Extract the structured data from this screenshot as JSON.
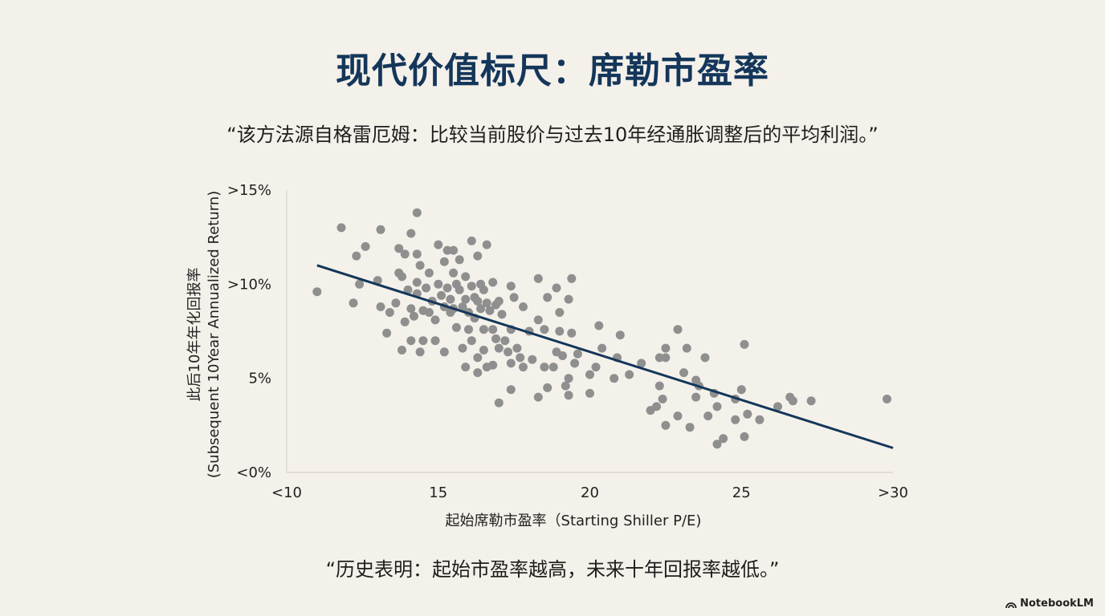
{
  "title": "现代价值标尺：席勒市盈率",
  "subtitle": "“该方法源自格雷厄姆：比较当前股价与过去10年经通胀调整后的平均利润。”",
  "conclusion": "“历史表明：起始市盈率越高，未来十年回报率越低。”",
  "brand": "NotebookLM",
  "colors": {
    "title": "#14365a",
    "points": "#8f8f8f",
    "trendline": "#14365a",
    "background": "#f4f1ea"
  },
  "chart_data": {
    "type": "scatter",
    "xlabel": "起始席勒市盈率（Starting Shiller P/E)",
    "ylabel_line1": "此后10年年化回报率",
    "ylabel_line2": "(Subsequent 10Year Annualized Return)",
    "xlim": [
      10,
      30
    ],
    "ylim": [
      0,
      15
    ],
    "x_ticks": [
      {
        "value": 10,
        "label": "<10"
      },
      {
        "value": 15,
        "label": "15"
      },
      {
        "value": 20,
        "label": "20"
      },
      {
        "value": 25,
        "label": "25"
      },
      {
        "value": 30,
        "label": ">30"
      }
    ],
    "y_ticks": [
      {
        "value": 0,
        "label": "<0%"
      },
      {
        "value": 5,
        "label": "5%"
      },
      {
        "value": 10,
        "label": ">10%"
      },
      {
        "value": 15,
        "label": ">15%"
      }
    ],
    "trendline": {
      "x": [
        11,
        30
      ],
      "y": [
        11.0,
        1.3
      ]
    },
    "points": [
      [
        11.0,
        9.6
      ],
      [
        11.8,
        13.0
      ],
      [
        12.2,
        9.0
      ],
      [
        12.3,
        11.5
      ],
      [
        12.4,
        10.0
      ],
      [
        12.6,
        12.0
      ],
      [
        13.0,
        10.2
      ],
      [
        13.1,
        12.9
      ],
      [
        13.1,
        8.8
      ],
      [
        13.3,
        7.4
      ],
      [
        13.4,
        8.5
      ],
      [
        13.6,
        9.0
      ],
      [
        13.7,
        11.9
      ],
      [
        13.7,
        10.6
      ],
      [
        13.8,
        10.4
      ],
      [
        13.8,
        6.5
      ],
      [
        13.9,
        8.0
      ],
      [
        13.9,
        11.6
      ],
      [
        14.0,
        9.7
      ],
      [
        14.1,
        8.7
      ],
      [
        14.1,
        7.0
      ],
      [
        14.1,
        12.7
      ],
      [
        14.2,
        8.3
      ],
      [
        14.3,
        13.8
      ],
      [
        14.3,
        11.6
      ],
      [
        14.3,
        10.1
      ],
      [
        14.3,
        9.5
      ],
      [
        14.4,
        11.0
      ],
      [
        14.4,
        6.4
      ],
      [
        14.5,
        8.6
      ],
      [
        14.5,
        7.0
      ],
      [
        14.6,
        9.8
      ],
      [
        14.7,
        10.6
      ],
      [
        14.7,
        8.5
      ],
      [
        14.8,
        9.1
      ],
      [
        14.9,
        8.1
      ],
      [
        14.9,
        7.0
      ],
      [
        15.0,
        12.1
      ],
      [
        15.0,
        10.0
      ],
      [
        15.1,
        9.4
      ],
      [
        15.2,
        11.2
      ],
      [
        15.2,
        8.8
      ],
      [
        15.2,
        6.4
      ],
      [
        15.3,
        11.8
      ],
      [
        15.3,
        9.8
      ],
      [
        15.4,
        9.2
      ],
      [
        15.4,
        8.5
      ],
      [
        15.5,
        11.8
      ],
      [
        15.5,
        10.6
      ],
      [
        15.5,
        8.7
      ],
      [
        15.6,
        10.0
      ],
      [
        15.6,
        7.7
      ],
      [
        15.7,
        11.3
      ],
      [
        15.7,
        9.7
      ],
      [
        15.8,
        8.8
      ],
      [
        15.8,
        6.6
      ],
      [
        15.9,
        10.4
      ],
      [
        15.9,
        9.2
      ],
      [
        15.9,
        5.6
      ],
      [
        16.0,
        8.5
      ],
      [
        16.0,
        7.6
      ],
      [
        16.1,
        12.3
      ],
      [
        16.1,
        9.9
      ],
      [
        16.1,
        7.0
      ],
      [
        16.2,
        9.3
      ],
      [
        16.2,
        8.2
      ],
      [
        16.3,
        11.5
      ],
      [
        16.3,
        9.1
      ],
      [
        16.3,
        6.1
      ],
      [
        16.3,
        5.3
      ],
      [
        16.4,
        10.0
      ],
      [
        16.4,
        8.7
      ],
      [
        16.5,
        9.7
      ],
      [
        16.5,
        7.6
      ],
      [
        16.5,
        6.5
      ],
      [
        16.6,
        12.1
      ],
      [
        16.6,
        9.0
      ],
      [
        16.6,
        5.6
      ],
      [
        16.7,
        8.6
      ],
      [
        16.8,
        10.1
      ],
      [
        16.8,
        7.6
      ],
      [
        16.8,
        5.7
      ],
      [
        16.9,
        8.9
      ],
      [
        16.9,
        7.1
      ],
      [
        17.0,
        9.1
      ],
      [
        17.0,
        6.6
      ],
      [
        17.0,
        3.7
      ],
      [
        17.1,
        8.4
      ],
      [
        17.2,
        7.0
      ],
      [
        17.3,
        6.4
      ],
      [
        17.4,
        9.9
      ],
      [
        17.4,
        7.6
      ],
      [
        17.4,
        5.8
      ],
      [
        17.4,
        4.4
      ],
      [
        17.5,
        9.3
      ],
      [
        17.6,
        6.6
      ],
      [
        17.7,
        6.1
      ],
      [
        17.8,
        8.8
      ],
      [
        17.8,
        5.6
      ],
      [
        18.0,
        7.5
      ],
      [
        18.1,
        6.0
      ],
      [
        18.3,
        10.3
      ],
      [
        18.3,
        8.1
      ],
      [
        18.3,
        4.0
      ],
      [
        18.5,
        7.6
      ],
      [
        18.5,
        5.6
      ],
      [
        18.6,
        9.3
      ],
      [
        18.6,
        4.5
      ],
      [
        18.8,
        5.6
      ],
      [
        18.9,
        9.8
      ],
      [
        18.9,
        6.4
      ],
      [
        19.0,
        8.5
      ],
      [
        19.0,
        7.5
      ],
      [
        19.1,
        6.2
      ],
      [
        19.2,
        4.6
      ],
      [
        19.3,
        9.2
      ],
      [
        19.3,
        5.0
      ],
      [
        19.3,
        4.1
      ],
      [
        19.4,
        10.3
      ],
      [
        19.4,
        7.4
      ],
      [
        19.5,
        5.8
      ],
      [
        19.6,
        6.3
      ],
      [
        20.0,
        5.2
      ],
      [
        20.0,
        4.2
      ],
      [
        20.2,
        5.6
      ],
      [
        20.3,
        7.8
      ],
      [
        20.4,
        6.6
      ],
      [
        20.8,
        5.0
      ],
      [
        20.9,
        6.1
      ],
      [
        21.0,
        7.3
      ],
      [
        21.3,
        5.2
      ],
      [
        21.7,
        5.8
      ],
      [
        22.0,
        3.3
      ],
      [
        22.2,
        3.5
      ],
      [
        22.3,
        6.1
      ],
      [
        22.3,
        4.6
      ],
      [
        22.4,
        3.9
      ],
      [
        22.5,
        2.5
      ],
      [
        22.5,
        6.6
      ],
      [
        22.5,
        6.1
      ],
      [
        22.9,
        7.6
      ],
      [
        22.9,
        3.0
      ],
      [
        23.1,
        5.3
      ],
      [
        23.2,
        6.6
      ],
      [
        23.3,
        2.4
      ],
      [
        23.5,
        4.9
      ],
      [
        23.5,
        4.0
      ],
      [
        23.6,
        4.6
      ],
      [
        23.8,
        6.1
      ],
      [
        23.9,
        3.0
      ],
      [
        24.1,
        4.2
      ],
      [
        24.2,
        3.5
      ],
      [
        24.2,
        1.5
      ],
      [
        24.4,
        1.8
      ],
      [
        24.8,
        3.9
      ],
      [
        24.8,
        2.8
      ],
      [
        25.0,
        4.4
      ],
      [
        25.1,
        6.8
      ],
      [
        25.1,
        1.9
      ],
      [
        25.2,
        3.1
      ],
      [
        25.6,
        2.8
      ],
      [
        26.2,
        3.5
      ],
      [
        26.6,
        4.0
      ],
      [
        26.7,
        3.8
      ],
      [
        27.3,
        3.8
      ],
      [
        29.8,
        3.9
      ]
    ]
  }
}
